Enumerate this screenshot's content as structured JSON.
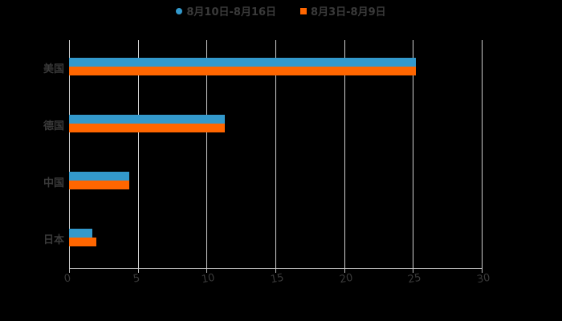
{
  "colors": {
    "series1": "#3399cc",
    "series2": "#ff6600",
    "grid": "#d0d0d0",
    "text": "#3a3a3a",
    "background": "#000000"
  },
  "legend": [
    {
      "label": "8月10日-8月16日",
      "color": "#3399cc",
      "shape": "circle"
    },
    {
      "label": "8月3日-8月9日",
      "color": "#ff6600",
      "shape": "square"
    }
  ],
  "chart_data": {
    "type": "bar",
    "orientation": "horizontal",
    "title": "",
    "xlabel": "",
    "ylabel": "",
    "categories": [
      "美国",
      "德国",
      "中国",
      "日本"
    ],
    "series": [
      {
        "name": "8月10日-8月16日",
        "values": [
          25.2,
          11.3,
          4.4,
          1.7
        ]
      },
      {
        "name": "8月3日-8月9日",
        "values": [
          25.2,
          11.3,
          4.4,
          2.0
        ]
      }
    ],
    "xlim": [
      0,
      30
    ],
    "xticks": [
      "0",
      "5",
      "10",
      "15",
      "20",
      "25",
      "30"
    ],
    "grid": true,
    "legend_position": "top"
  }
}
